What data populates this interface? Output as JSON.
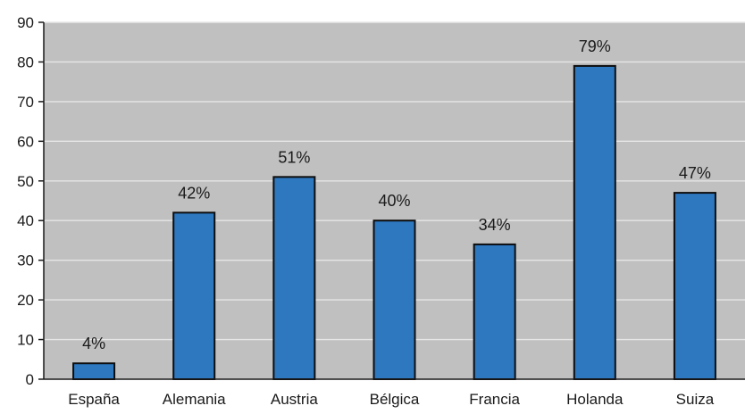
{
  "chart_data": {
    "type": "bar",
    "title": "",
    "xlabel": "",
    "ylabel": "",
    "categories": [
      "España",
      "Alemania",
      "Austria",
      "Bélgica",
      "Francia",
      "Holanda",
      "Suiza"
    ],
    "values": [
      4,
      42,
      51,
      40,
      34,
      79,
      47
    ],
    "data_labels": [
      "4%",
      "42%",
      "51%",
      "40%",
      "34%",
      "79%",
      "47%"
    ],
    "ylim": [
      0,
      90
    ],
    "y_ticks": [
      0,
      10,
      20,
      30,
      40,
      50,
      60,
      70,
      80,
      90
    ],
    "y_tick_labels": [
      "0",
      "10",
      "20",
      "30",
      "40",
      "50",
      "60",
      "70",
      "80",
      "90"
    ],
    "grid": true,
    "legend": "none",
    "colors": {
      "bar_fill": "#2e78c0",
      "bar_stroke": "#0d0d0d",
      "plot_background": "#c0c0c0",
      "grid_line": "#e6e6e6",
      "axis_line": "#1a1a1a"
    }
  }
}
